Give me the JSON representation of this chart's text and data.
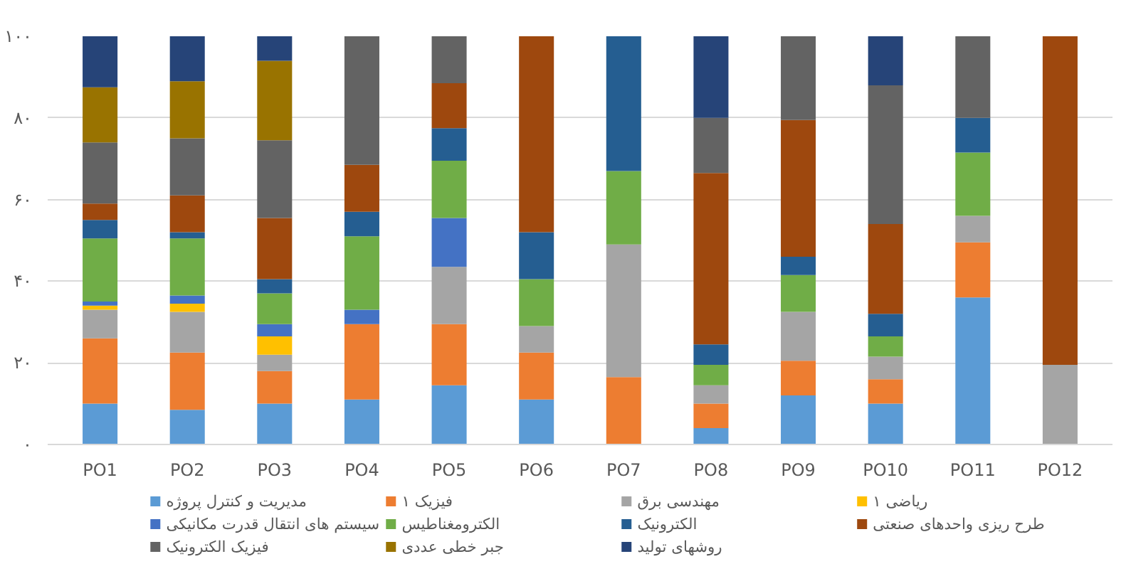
{
  "chart_data": {
    "type": "bar",
    "stacked": true,
    "categories": [
      "PO1",
      "PO2",
      "PO3",
      "PO4",
      "PO5",
      "PO6",
      "PO7",
      "PO8",
      "PO9",
      "PO10",
      "PO11",
      "PO12"
    ],
    "ylim": [
      0,
      100
    ],
    "yticks": [
      {
        "value": 0,
        "label": "۰"
      },
      {
        "value": 20,
        "label": "۲۰"
      },
      {
        "value": 40,
        "label": "۴۰"
      },
      {
        "value": 60,
        "label": "۶۰"
      },
      {
        "value": 80,
        "label": "۸۰"
      },
      {
        "value": 100,
        "label": "۱۰۰"
      }
    ],
    "grid": "y",
    "legend": "bottom",
    "series": [
      {
        "name": "مدیریت و کنترل پروژه",
        "color": "#5b9bd5",
        "values": [
          10,
          8.5,
          10,
          11,
          14.5,
          11,
          null,
          4,
          12,
          10,
          36,
          null
        ]
      },
      {
        "name": "فیزیک ۱",
        "color": "#ed7d31",
        "values": [
          16,
          14,
          8,
          18.5,
          15,
          11.5,
          16.5,
          6,
          8.5,
          6,
          13.5,
          null
        ]
      },
      {
        "name": "مهندسی برق",
        "color": "#a5a5a5",
        "values": [
          7,
          10,
          4,
          null,
          14,
          6.5,
          32.5,
          4.5,
          12,
          5.5,
          6.5,
          19.5
        ]
      },
      {
        "name": "ریاضی ۱",
        "color": "#ffc000",
        "values": [
          1,
          2,
          4.5,
          null,
          null,
          null,
          null,
          null,
          null,
          null,
          null,
          null
        ]
      },
      {
        "name": "سیستم های انتقال قدرت مکانیکی",
        "color": "#4472c4",
        "values": [
          1,
          2,
          3,
          3.5,
          12,
          null,
          null,
          null,
          null,
          null,
          null,
          null
        ]
      },
      {
        "name": "الکترومغناطیس",
        "color": "#70ad47",
        "values": [
          15.5,
          14,
          7.5,
          18,
          14,
          11.5,
          18,
          5,
          9,
          5,
          15.5,
          null
        ]
      },
      {
        "name": "الکترونیک",
        "color": "#255e91",
        "values": [
          4.5,
          1.5,
          3.5,
          6,
          8,
          11.5,
          33,
          5,
          4.5,
          5.5,
          8.5,
          null
        ]
      },
      {
        "name": "طرح ریزی واحدهای صنعتی",
        "color": "#9e480e",
        "values": [
          4,
          9,
          15,
          11.5,
          11,
          48,
          null,
          42,
          33.5,
          22,
          null,
          80.5
        ]
      },
      {
        "name": "فیزیک الکترونیک",
        "color": "#636363",
        "values": [
          15,
          14,
          19,
          31.5,
          11.5,
          null,
          null,
          13.5,
          20.5,
          34,
          20,
          null
        ]
      },
      {
        "name": "جبر خطی عددی",
        "color": "#997300",
        "values": [
          13.5,
          14,
          19.5,
          null,
          null,
          null,
          null,
          null,
          null,
          null,
          null,
          null
        ]
      },
      {
        "name": "روشهای تولید",
        "color": "#264478",
        "values": [
          12.5,
          11,
          6,
          null,
          null,
          null,
          null,
          20,
          null,
          12,
          null,
          null
        ]
      }
    ]
  }
}
